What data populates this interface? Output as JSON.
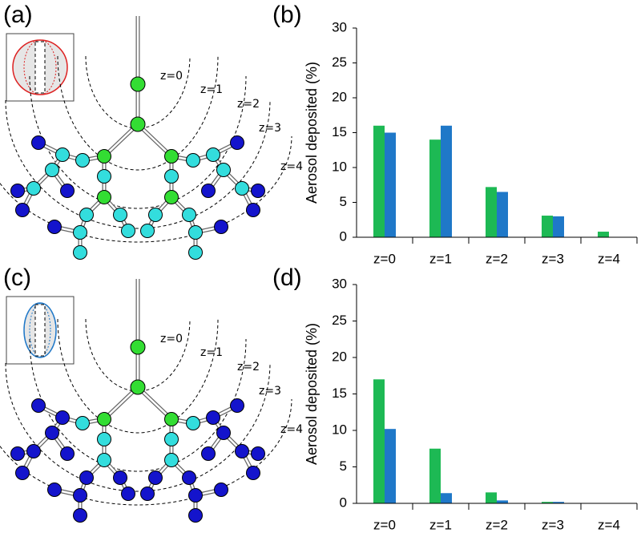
{
  "panel_labels": [
    "(a)",
    "(b)",
    "(c)",
    "(d)"
  ],
  "diagrams": [
    {
      "generation_labels": [
        "z=0",
        "z=1",
        "z=2",
        "z=3",
        "z=4"
      ]
    },
    {
      "generation_labels": [
        "z=0",
        "z=1",
        "z=2",
        "z=3",
        "z=4"
      ]
    }
  ],
  "chart_data": [
    {
      "type": "bar",
      "ylabel": "Aerosol deposited (%)",
      "categories": [
        "z=0",
        "z=1",
        "z=2",
        "z=3",
        "z=4"
      ],
      "series": [
        {
          "color": "#1db954",
          "values": [
            16,
            14,
            7.2,
            3.1,
            0.8
          ]
        },
        {
          "color": "#1f78c8",
          "values": [
            15,
            16,
            6.5,
            3.0,
            null
          ]
        }
      ],
      "ylim": [
        0,
        30
      ],
      "yticks": [
        0,
        5,
        10,
        15,
        20,
        25,
        30
      ]
    },
    {
      "type": "bar",
      "ylabel": "Aerosol deposited (%)",
      "categories": [
        "z=0",
        "z=1",
        "z=2",
        "z=3",
        "z=4"
      ],
      "series": [
        {
          "color": "#1db954",
          "values": [
            17,
            7.5,
            1.5,
            0.2,
            0.05
          ]
        },
        {
          "color": "#1f78c8",
          "values": [
            10.2,
            1.4,
            0.4,
            0.2,
            0.05
          ]
        }
      ],
      "ylim": [
        0,
        30
      ],
      "yticks": [
        0,
        5,
        10,
        15,
        20,
        25,
        30
      ]
    }
  ]
}
